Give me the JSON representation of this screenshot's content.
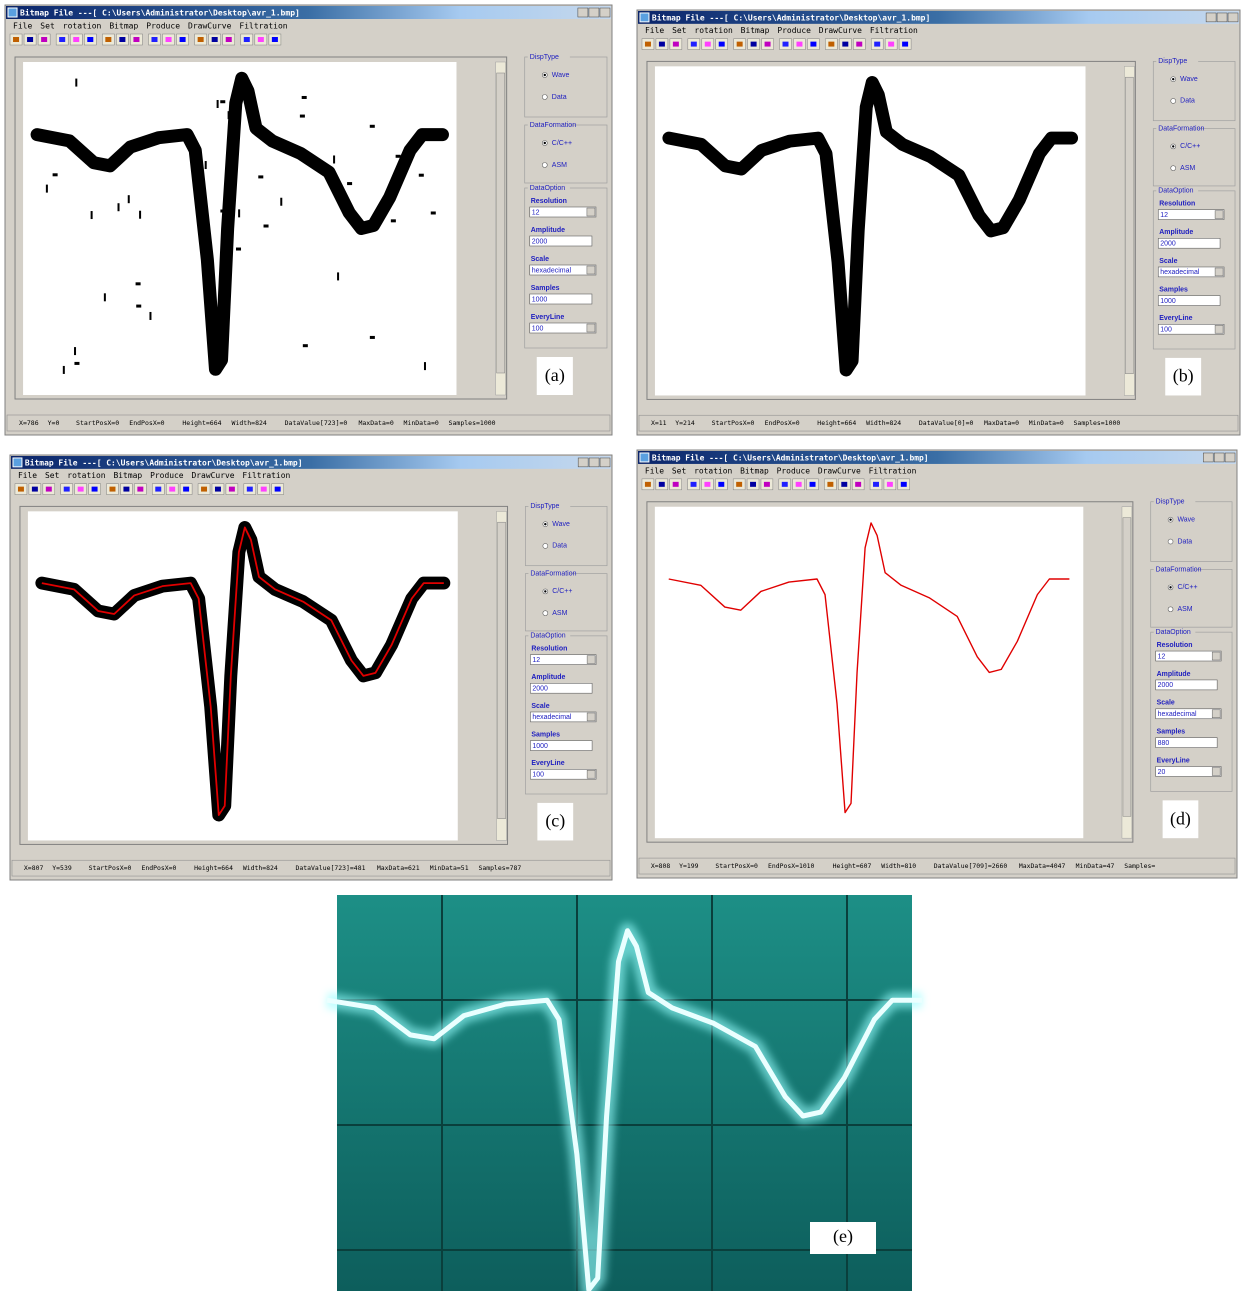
{
  "menu": [
    "File",
    "Set",
    "rotation",
    "Bitmap",
    "Produce",
    "DrawCurve",
    "Filtration"
  ],
  "groups": {
    "disp_type": "DispType",
    "wave": "Wave",
    "data": "Data",
    "data_formation": "DataFormation",
    "c_cpp": "C/C++",
    "asm": "ASM",
    "data_option": "DataOption"
  },
  "field_labels": [
    "Resolution",
    "Amplitude",
    "Scale",
    "Samples",
    "EveryLine"
  ],
  "windows": [
    {
      "label": "(a)",
      "title": "Bitmap File ---[ C:\\Users\\Administrator\\Desktop\\avr_1.bmp]",
      "fields": [
        "12",
        "2000",
        "hexadecimal",
        "1000",
        "100"
      ],
      "status": [
        "X=786",
        "Y=0",
        "StartPosX=0",
        "EndPosX=0",
        "Height=664",
        "Width=824",
        "DataValue[723]=0",
        "MaxData=0",
        "MinData=0",
        "Samples=1000"
      ]
    },
    {
      "label": "(b)",
      "title": "Bitmap File ---[ C:\\Users\\Administrator\\Desktop\\avr_1.bmp]",
      "fields": [
        "12",
        "2000",
        "hexadecimal",
        "1000",
        "100"
      ],
      "status": [
        "X=11",
        "Y=214",
        "StartPosX=0",
        "EndPosX=0",
        "Height=664",
        "Width=824",
        "DataValue[0]=0",
        "MaxData=0",
        "MinData=0",
        "Samples=1000"
      ]
    },
    {
      "label": "(c)",
      "title": "Bitmap File ---[ C:\\Users\\Administrator\\Desktop\\avr_1.bmp]",
      "fields": [
        "12",
        "2000",
        "hexadecimal",
        "1000",
        "100"
      ],
      "status": [
        "X=807",
        "Y=539",
        "StartPosX=0",
        "EndPosX=0",
        "Height=664",
        "Width=824",
        "DataValue[723]=481",
        "MaxData=621",
        "MinData=51",
        "Samples=787"
      ]
    },
    {
      "label": "(d)",
      "title": "Bitmap File ---[ C:\\Users\\Administrator\\Desktop\\avr_1.bmp]",
      "fields": [
        "12",
        "2000",
        "hexadecimal",
        "880",
        "20"
      ],
      "status": [
        "X=808",
        "Y=199",
        "StartPosX=0",
        "EndPosX=1010",
        "Height=607",
        "Width=810",
        "DataValue[709]=2660",
        "MaxData=4047",
        "MinData=47",
        "Samples="
      ]
    }
  ],
  "photo": {
    "label": "(e)"
  }
}
